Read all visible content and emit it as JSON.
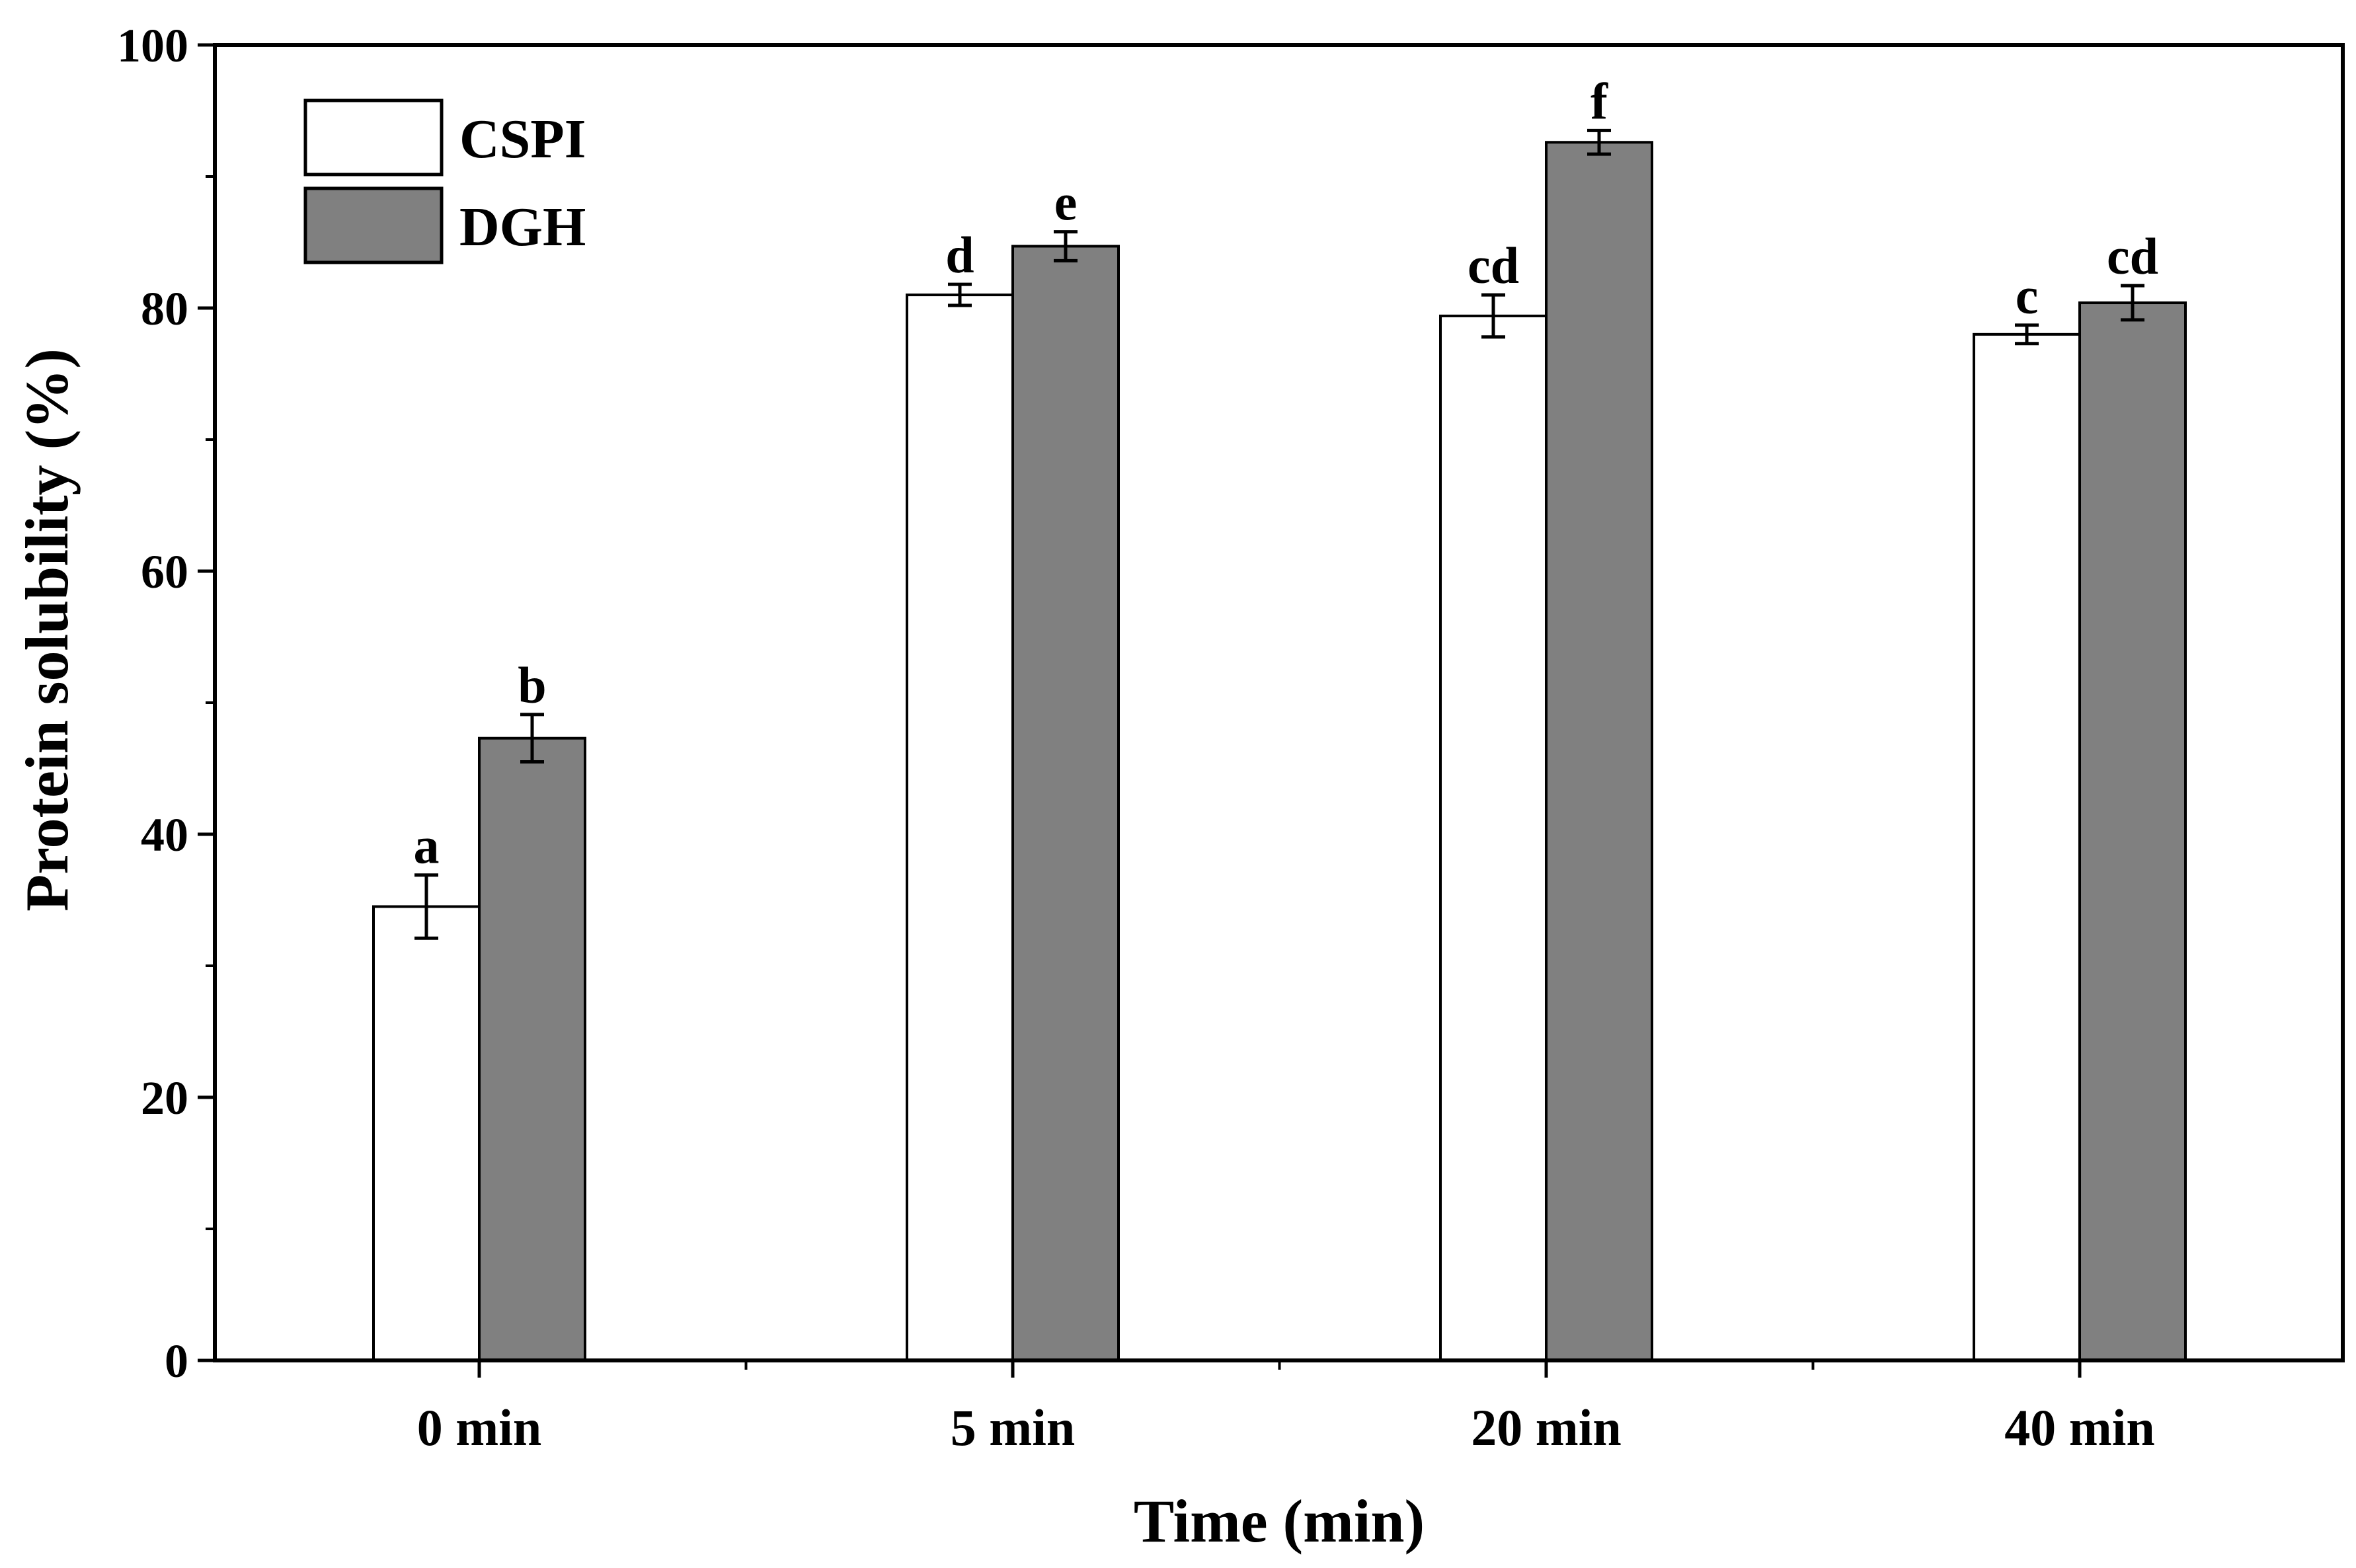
{
  "chart_data": {
    "type": "bar",
    "title": "",
    "xlabel": "Time (min)",
    "ylabel": "Protein solubility (%)",
    "ylim": [
      0,
      100
    ],
    "yticks": [
      0,
      20,
      40,
      60,
      80,
      100
    ],
    "categories": [
      "0 min",
      "5 min",
      "20 min",
      "40 min"
    ],
    "legend_position": "top-left",
    "grid": false,
    "series": [
      {
        "name": "CSPI",
        "color": "#ffffff",
        "values": [
          34.5,
          81.0,
          79.4,
          78.0
        ],
        "errors": [
          2.4,
          0.8,
          1.6,
          0.7
        ],
        "labels": [
          "a",
          "d",
          "cd",
          "c"
        ]
      },
      {
        "name": "DGH",
        "color": "#808080",
        "values": [
          47.3,
          84.7,
          92.6,
          80.4
        ],
        "errors": [
          1.8,
          1.1,
          0.9,
          1.3
        ],
        "labels": [
          "b",
          "e",
          "f",
          "cd"
        ]
      }
    ]
  }
}
